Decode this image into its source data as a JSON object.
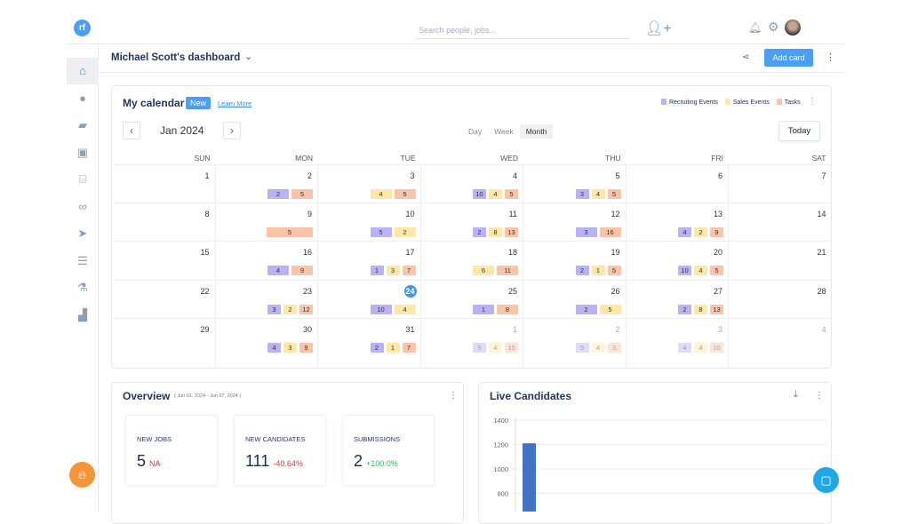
{
  "header": {
    "logo": "rf",
    "search_placeholder": "Search people, jobs...",
    "icons": [
      "add-user-icon",
      "bell-icon",
      "gear-icon",
      "avatar"
    ]
  },
  "sidebar": {
    "items": [
      {
        "name": "home",
        "glyph": "⌂",
        "active": true
      },
      {
        "name": "person",
        "glyph": "●"
      },
      {
        "name": "briefcase",
        "glyph": "▰"
      },
      {
        "name": "contacts",
        "glyph": "▣"
      },
      {
        "name": "bank",
        "glyph": "⌸"
      },
      {
        "name": "handshake",
        "glyph": "∞"
      },
      {
        "name": "send",
        "glyph": "➤"
      },
      {
        "name": "checklist",
        "glyph": "☰"
      },
      {
        "name": "flask",
        "glyph": "⚗"
      },
      {
        "name": "analytics",
        "glyph": "▟"
      }
    ]
  },
  "dashboard": {
    "title": "Michael Scott's dashboard",
    "add_card": "Add card"
  },
  "calendar": {
    "title": "My calendar",
    "badge": "New",
    "learn_more": "Learn More",
    "legend": [
      {
        "label": "Recruiting Events",
        "color": "#b9b3f5"
      },
      {
        "label": "Sales Events",
        "color": "#fde8a6"
      },
      {
        "label": "Tasks",
        "color": "#fbc4a8"
      }
    ],
    "month": "Jan 2024",
    "views": [
      "Day",
      "Week",
      "Month"
    ],
    "active_view": "Month",
    "today_btn": "Today",
    "weekdays": [
      "SUN",
      "MON",
      "TUE",
      "WED",
      "THU",
      "FRI",
      "SAT"
    ],
    "weeks": [
      [
        {
          "d": "1"
        },
        {
          "d": "2",
          "c": [
            [
              "2",
              "r"
            ],
            [
              "5",
              "t"
            ]
          ]
        },
        {
          "d": "3",
          "c": [
            [
              "4",
              "s"
            ],
            [
              "5",
              "t"
            ]
          ]
        },
        {
          "d": "4",
          "c": [
            [
              "10",
              "r"
            ],
            [
              "4",
              "s"
            ],
            [
              "5",
              "t"
            ]
          ]
        },
        {
          "d": "5",
          "c": [
            [
              "3",
              "r"
            ],
            [
              "4",
              "s"
            ],
            [
              "5",
              "t"
            ]
          ]
        },
        {
          "d": "6"
        },
        {
          "d": "7"
        }
      ],
      [
        {
          "d": "8"
        },
        {
          "d": "9",
          "c": [
            [
              "5",
              "t"
            ]
          ]
        },
        {
          "d": "10",
          "c": [
            [
              "5",
              "r"
            ],
            [
              "2",
              "s"
            ]
          ]
        },
        {
          "d": "11",
          "c": [
            [
              "2",
              "r"
            ],
            [
              "8",
              "s"
            ],
            [
              "13",
              "t"
            ]
          ]
        },
        {
          "d": "12",
          "c": [
            [
              "3",
              "r"
            ],
            [
              "16",
              "t"
            ]
          ]
        },
        {
          "d": "13",
          "c": [
            [
              "4",
              "r"
            ],
            [
              "2",
              "s"
            ],
            [
              "9",
              "t"
            ]
          ]
        },
        {
          "d": "14"
        }
      ],
      [
        {
          "d": "15"
        },
        {
          "d": "16",
          "c": [
            [
              "4",
              "r"
            ],
            [
              "9",
              "t"
            ]
          ]
        },
        {
          "d": "17",
          "c": [
            [
              "1",
              "r"
            ],
            [
              "3",
              "s"
            ],
            [
              "7",
              "t"
            ]
          ]
        },
        {
          "d": "18",
          "c": [
            [
              "6",
              "s"
            ],
            [
              "11",
              "t"
            ]
          ]
        },
        {
          "d": "19",
          "c": [
            [
              "2",
              "r"
            ],
            [
              "1",
              "s"
            ],
            [
              "5",
              "t"
            ]
          ]
        },
        {
          "d": "20",
          "c": [
            [
              "10",
              "r"
            ],
            [
              "4",
              "s"
            ],
            [
              "5",
              "t"
            ]
          ]
        },
        {
          "d": "21"
        }
      ],
      [
        {
          "d": "22"
        },
        {
          "d": "23",
          "c": [
            [
              "3",
              "r"
            ],
            [
              "2",
              "s"
            ],
            [
              "12",
              "t"
            ]
          ]
        },
        {
          "d": "24",
          "today": true,
          "c": [
            [
              "10",
              "r"
            ],
            [
              "4",
              "s"
            ]
          ]
        },
        {
          "d": "25",
          "c": [
            [
              "1",
              "r"
            ],
            [
              "8",
              "t"
            ]
          ]
        },
        {
          "d": "26",
          "c": [
            [
              "2",
              "r"
            ],
            [
              "5",
              "s"
            ]
          ]
        },
        {
          "d": "27",
          "c": [
            [
              "2",
              "r"
            ],
            [
              "8",
              "s"
            ],
            [
              "13",
              "t"
            ]
          ]
        },
        {
          "d": "28"
        }
      ],
      [
        {
          "d": "29"
        },
        {
          "d": "30",
          "c": [
            [
              "4",
              "r"
            ],
            [
              "3",
              "s"
            ],
            [
              "9",
              "t"
            ]
          ]
        },
        {
          "d": "31",
          "c": [
            [
              "2",
              "r"
            ],
            [
              "1",
              "s"
            ],
            [
              "7",
              "t"
            ]
          ]
        },
        {
          "d": "1",
          "dim": true,
          "c": [
            [
              "9",
              "r"
            ],
            [
              "4",
              "s"
            ],
            [
              "10",
              "t"
            ]
          ]
        },
        {
          "d": "2",
          "dim": true,
          "c": [
            [
              "5",
              "r"
            ],
            [
              "4",
              "s"
            ],
            [
              "3",
              "t"
            ]
          ]
        },
        {
          "d": "3",
          "dim": true,
          "c": [
            [
              "4",
              "r"
            ],
            [
              "4",
              "s"
            ],
            [
              "10",
              "t"
            ]
          ]
        },
        {
          "d": "4",
          "dim": true
        }
      ]
    ]
  },
  "overview": {
    "title": "Overview",
    "range": "( Jun 01, 2024 - Jun 07, 2024 )",
    "kpis": [
      {
        "label": "NEW JOBS",
        "value": "5",
        "change": "NA",
        "color": "#f0303a"
      },
      {
        "label": "NEW CANDIDATES",
        "value": "111",
        "change": "-40.64%",
        "color": "#f0303a"
      },
      {
        "label": "SUBMISSIONS",
        "value": "2",
        "change": "+100.0%",
        "color": "#2fbf5a"
      }
    ]
  },
  "live": {
    "title": "Live Candidates"
  },
  "chart_data": {
    "type": "bar",
    "title": "Live Candidates",
    "values": [
      1210
    ],
    "yticks": [
      800,
      1000,
      1200,
      1400
    ],
    "ylim": [
      800,
      1400
    ],
    "grid": true,
    "color": "#4472c4"
  }
}
